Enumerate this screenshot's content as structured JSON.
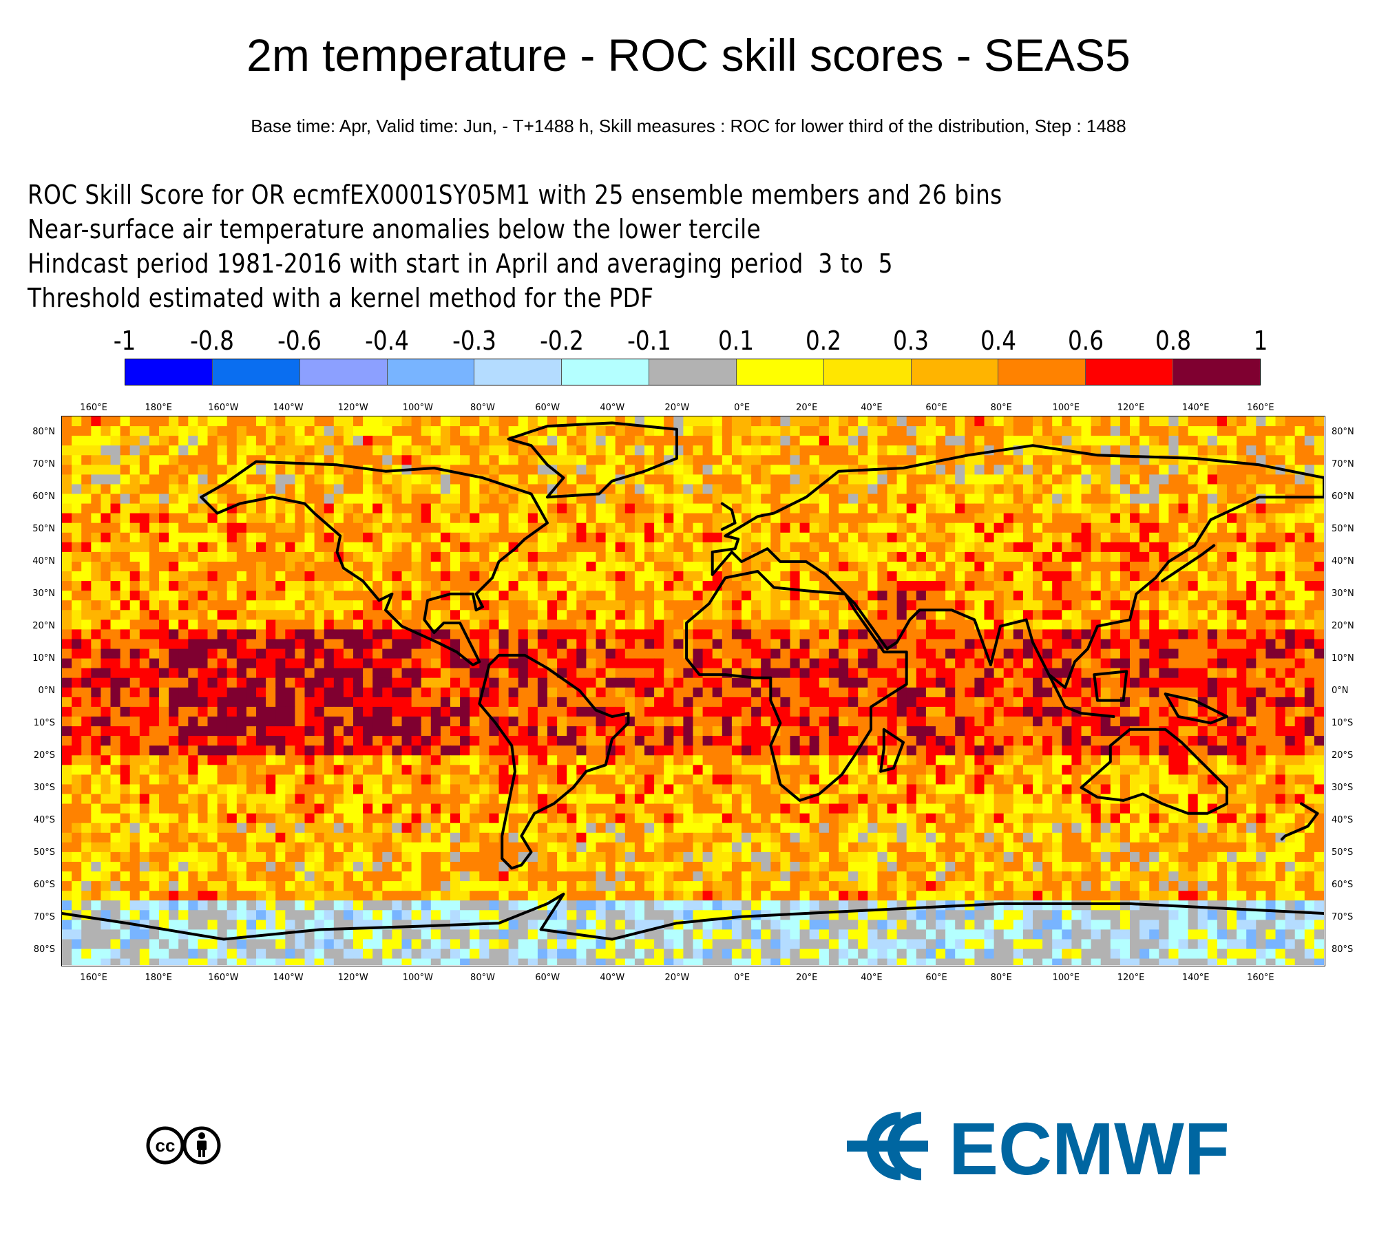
{
  "title": "2m temperature - ROC skill scores - SEAS5",
  "subtitle": "Base time: Apr, Valid time: Jun, - T+1488 h, Skill measures : ROC for lower third of the distribution, Step : 1488",
  "description": [
    "ROC Skill Score for OR ecmfEX0001SY05M1 with 25 ensemble members and 26 bins",
    "Near-surface air temperature anomalies below the lower tercile",
    "Hindcast period 1981-2016 with start in April and averaging period  3 to  5",
    "Threshold estimated with a kernel method for the PDF"
  ],
  "colorbar": {
    "labels": [
      "-1",
      "-0.8",
      "-0.6",
      "-0.4",
      "-0.3",
      "-0.2",
      "-0.1",
      "0.1",
      "0.2",
      "0.3",
      "0.4",
      "0.6",
      "0.8",
      "1"
    ],
    "colors": [
      "#0000ff",
      "#0a6ef0",
      "#8ca0ff",
      "#78b4ff",
      "#b4dcff",
      "#b4ffff",
      "#b2b2b2",
      "#ffff00",
      "#ffe600",
      "#ffb400",
      "#ff8200",
      "#ff0000",
      "#7f0030"
    ]
  },
  "map": {
    "lon_labels": [
      "160°E",
      "180°E",
      "160°W",
      "140°W",
      "120°W",
      "100°W",
      "80°W",
      "60°W",
      "40°W",
      "20°W",
      "0°E",
      "20°E",
      "40°E",
      "60°E",
      "80°E",
      "100°E",
      "120°E",
      "140°E",
      "160°E"
    ],
    "lat_labels": [
      "80°N",
      "70°N",
      "60°N",
      "50°N",
      "40°N",
      "30°N",
      "20°N",
      "10°N",
      "0°N",
      "10°S",
      "20°S",
      "30°S",
      "40°S",
      "50°S",
      "60°S",
      "70°S",
      "80°S"
    ],
    "lon_range": [
      150,
      540
    ],
    "lat_range": [
      -85,
      85
    ]
  },
  "logos": {
    "cc_text": "cc",
    "ecmwf_text": "ECMWF",
    "ecmwf_color": "#0066a1"
  }
}
